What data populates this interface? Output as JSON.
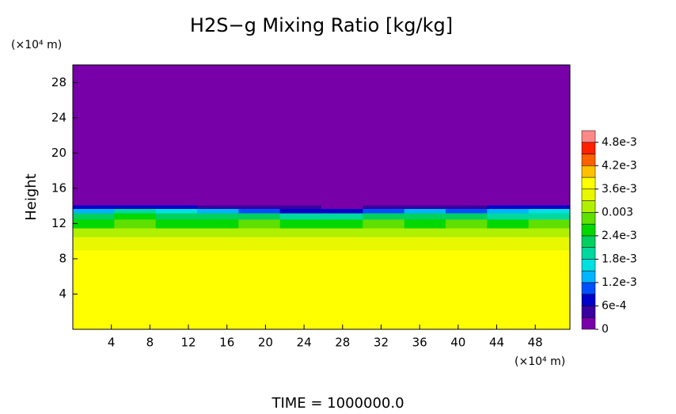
{
  "chart_data": {
    "type": "heatmap",
    "title": "H2S−g Mixing Ratio [kg/kg]",
    "y_unit": "(×10⁴ m)",
    "x_unit": "(×10⁴ m)",
    "ylabel": "Height",
    "footer": "TIME = 1000000.0",
    "xlim": [
      0,
      51.6
    ],
    "ylim": [
      0,
      30
    ],
    "xticks": [
      4,
      8,
      12,
      16,
      20,
      24,
      28,
      32,
      36,
      40,
      44,
      48
    ],
    "yticks": [
      4,
      8,
      12,
      16,
      20,
      24,
      28
    ],
    "x_edges": [
      0,
      4.3,
      8.6,
      12.9,
      17.2,
      21.5,
      25.8,
      30.1,
      34.4,
      38.7,
      43,
      47.3,
      51.6
    ],
    "y_edges": [
      0,
      9,
      10.5,
      11.5,
      12.5,
      13.2,
      13.7,
      14.1,
      30
    ],
    "values": [
      [
        0.0037,
        0.0037,
        0.0037,
        0.0037,
        0.0037,
        0.0037,
        0.0037,
        0.0037,
        0.0037,
        0.0037,
        0.0037,
        0.0037
      ],
      [
        0.0034,
        0.0034,
        0.0034,
        0.0034,
        0.0034,
        0.0034,
        0.0034,
        0.0034,
        0.0034,
        0.0034,
        0.0034,
        0.0034
      ],
      [
        0.0031,
        0.0031,
        0.0032,
        0.0031,
        0.0031,
        0.0031,
        0.0031,
        0.0031,
        0.0032,
        0.0031,
        0.0031,
        0.0031
      ],
      [
        0.0026,
        0.0027,
        0.0026,
        0.0026,
        0.0027,
        0.0026,
        0.0026,
        0.0027,
        0.0026,
        0.0027,
        0.0026,
        0.0027
      ],
      [
        0.0022,
        0.0025,
        0.0024,
        0.0022,
        0.0022,
        0.0021,
        0.0019,
        0.0022,
        0.0023,
        0.0022,
        0.0021,
        0.0019
      ],
      [
        0.0014,
        0.0019,
        0.0018,
        0.0014,
        0.0012,
        0.0009,
        0.0007,
        0.001,
        0.0013,
        0.0012,
        0.0014,
        0.0015
      ],
      [
        0.0007,
        0.0008,
        0.0007,
        0.0005,
        0.0004,
        0.0004,
        0.0001,
        0.0004,
        0.0005,
        0.0004,
        0.0007,
        0.0008
      ],
      [
        0.0001,
        0.0001,
        0.0001,
        0.0001,
        0.0001,
        0.0001,
        0.0001,
        0.0001,
        0.0001,
        0.0001,
        0.0001,
        0.0001
      ]
    ],
    "clim": [
      0,
      0.0051
    ],
    "colors": [
      "#7800a8",
      "#3a00a0",
      "#0000c8",
      "#0050ff",
      "#00b4ff",
      "#00e0e0",
      "#00d8a0",
      "#00d060",
      "#00d800",
      "#60e000",
      "#b0f000",
      "#e8f800",
      "#ffff00",
      "#ffc000",
      "#ff6000",
      "#ff2000",
      "#ff8888"
    ],
    "cticks": [
      0,
      {
        "value": 0.0006,
        "label": "6e-4"
      },
      {
        "value": 0.0012,
        "label": "1.2e-3"
      },
      {
        "value": 0.0018,
        "label": "1.8e-3"
      },
      {
        "value": 0.0024,
        "label": "2.4e-3"
      },
      0.003,
      {
        "value": 0.0036,
        "label": "3.6e-3"
      },
      {
        "value": 0.0042,
        "label": "4.2e-3"
      },
      {
        "value": 0.0048,
        "label": "4.8e-3"
      }
    ]
  }
}
